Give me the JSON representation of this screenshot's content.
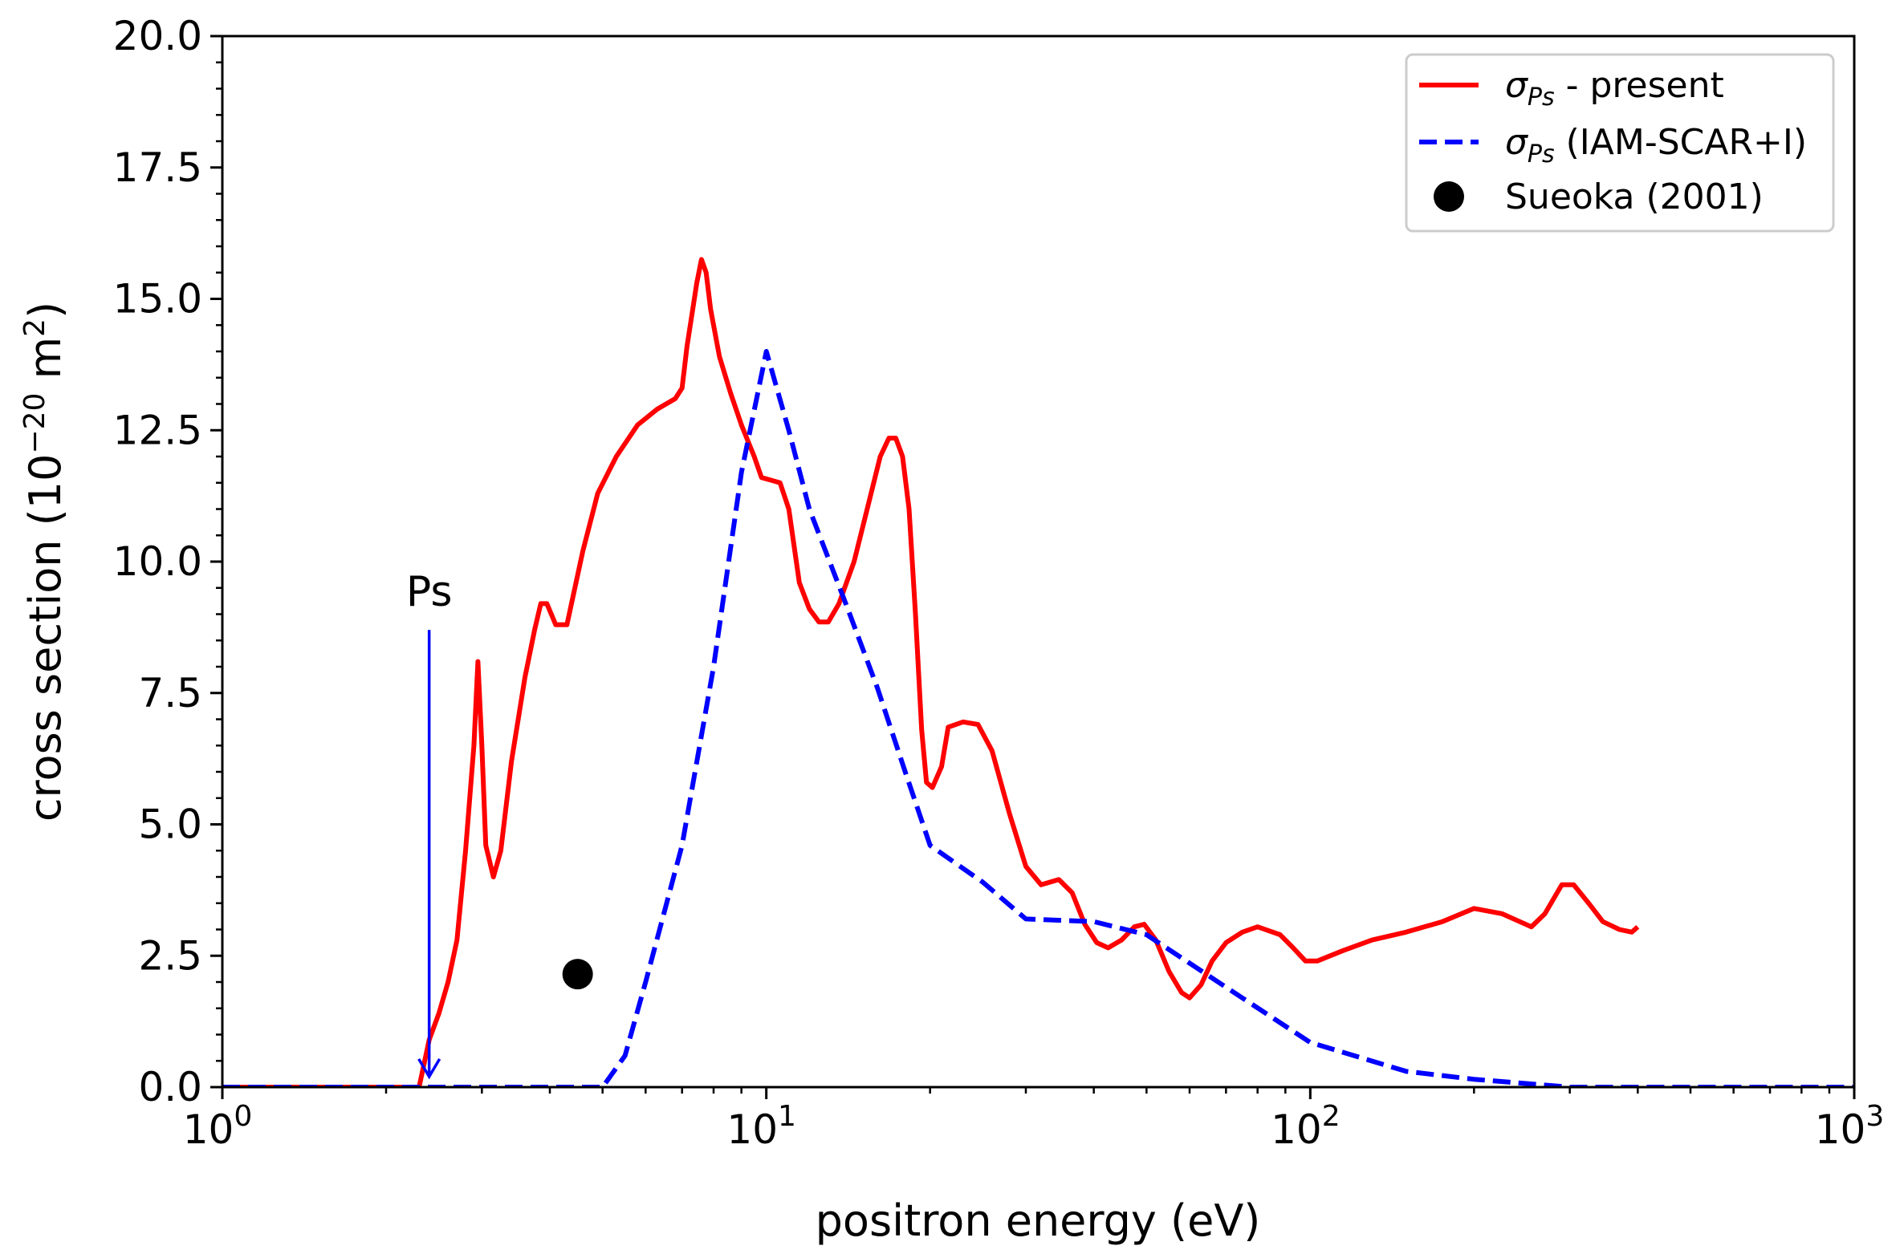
{
  "chart_data": {
    "type": "line",
    "xscale": "log",
    "xlim": [
      1,
      1000
    ],
    "ylim": [
      0,
      20
    ],
    "xlabel": "positron energy (eV)",
    "ylabel_prefix": "cross section (10",
    "ylabel_exp": "−20",
    "ylabel_mid": " m",
    "ylabel_sq": "2",
    "ylabel_suffix": ")",
    "x_ticks": [
      {
        "value": 1,
        "base": "10",
        "exp": "0"
      },
      {
        "value": 10,
        "base": "10",
        "exp": "1"
      },
      {
        "value": 100,
        "base": "10",
        "exp": "2"
      },
      {
        "value": 1000,
        "base": "10",
        "exp": "3"
      }
    ],
    "y_ticks": [
      "0.0",
      "2.5",
      "5.0",
      "7.5",
      "10.0",
      "12.5",
      "15.0",
      "17.5",
      "20.0"
    ],
    "legend_position": "top-right",
    "series": [
      {
        "name_symbol": "σ",
        "name_sub": "Ps",
        "name_rest": " - present",
        "style": "solid",
        "color": "#ff0000",
        "points": [
          [
            1.0,
            0
          ],
          [
            2.3,
            0
          ],
          [
            2.4,
            0.9
          ],
          [
            2.5,
            1.4
          ],
          [
            2.6,
            2.0
          ],
          [
            2.7,
            2.8
          ],
          [
            2.8,
            4.5
          ],
          [
            2.9,
            6.5
          ],
          [
            2.95,
            8.1
          ],
          [
            3.0,
            6.5
          ],
          [
            3.05,
            4.6
          ],
          [
            3.15,
            4.0
          ],
          [
            3.25,
            4.5
          ],
          [
            3.4,
            6.2
          ],
          [
            3.6,
            7.8
          ],
          [
            3.75,
            8.7
          ],
          [
            3.85,
            9.2
          ],
          [
            3.95,
            9.2
          ],
          [
            4.1,
            8.8
          ],
          [
            4.3,
            8.8
          ],
          [
            4.6,
            10.2
          ],
          [
            4.9,
            11.3
          ],
          [
            5.3,
            12.0
          ],
          [
            5.8,
            12.6
          ],
          [
            6.3,
            12.9
          ],
          [
            6.8,
            13.1
          ],
          [
            7.0,
            13.3
          ],
          [
            7.15,
            14.1
          ],
          [
            7.3,
            14.7
          ],
          [
            7.45,
            15.3
          ],
          [
            7.6,
            15.75
          ],
          [
            7.75,
            15.5
          ],
          [
            7.9,
            14.8
          ],
          [
            8.2,
            13.9
          ],
          [
            8.6,
            13.2
          ],
          [
            9.0,
            12.6
          ],
          [
            9.5,
            12.0
          ],
          [
            9.8,
            11.6
          ],
          [
            10.2,
            11.55
          ],
          [
            10.6,
            11.5
          ],
          [
            11.0,
            11.0
          ],
          [
            11.5,
            9.6
          ],
          [
            12.0,
            9.1
          ],
          [
            12.5,
            8.85
          ],
          [
            13.0,
            8.85
          ],
          [
            13.6,
            9.2
          ],
          [
            14.5,
            10.0
          ],
          [
            15.5,
            11.2
          ],
          [
            16.2,
            12.0
          ],
          [
            16.8,
            12.35
          ],
          [
            17.3,
            12.35
          ],
          [
            17.8,
            12.0
          ],
          [
            18.3,
            11.0
          ],
          [
            18.8,
            9.0
          ],
          [
            19.3,
            6.8
          ],
          [
            19.7,
            5.8
          ],
          [
            20.2,
            5.7
          ],
          [
            21.0,
            6.1
          ],
          [
            21.6,
            6.85
          ],
          [
            23.0,
            6.95
          ],
          [
            24.5,
            6.9
          ],
          [
            26.0,
            6.4
          ],
          [
            28.0,
            5.2
          ],
          [
            30.0,
            4.2
          ],
          [
            32.0,
            3.85
          ],
          [
            34.5,
            3.95
          ],
          [
            36.5,
            3.7
          ],
          [
            38.5,
            3.1
          ],
          [
            40.5,
            2.75
          ],
          [
            42.5,
            2.65
          ],
          [
            45.0,
            2.8
          ],
          [
            47.5,
            3.05
          ],
          [
            49.5,
            3.1
          ],
          [
            52.0,
            2.8
          ],
          [
            55.0,
            2.2
          ],
          [
            58.0,
            1.8
          ],
          [
            60.0,
            1.7
          ],
          [
            63.0,
            1.95
          ],
          [
            66.0,
            2.4
          ],
          [
            70.0,
            2.75
          ],
          [
            75.0,
            2.95
          ],
          [
            80.0,
            3.05
          ],
          [
            88.0,
            2.9
          ],
          [
            93.0,
            2.65
          ],
          [
            98.0,
            2.4
          ],
          [
            103.0,
            2.4
          ],
          [
            115.0,
            2.6
          ],
          [
            130.0,
            2.8
          ],
          [
            150.0,
            2.95
          ],
          [
            175.0,
            3.15
          ],
          [
            200.0,
            3.4
          ],
          [
            225.0,
            3.3
          ],
          [
            255.0,
            3.05
          ],
          [
            270.0,
            3.3
          ],
          [
            290.0,
            3.85
          ],
          [
            305.0,
            3.85
          ],
          [
            325.0,
            3.5
          ],
          [
            345.0,
            3.15
          ],
          [
            370.0,
            3.0
          ],
          [
            390.0,
            2.95
          ],
          [
            400.0,
            3.05
          ]
        ]
      },
      {
        "name_symbol": "σ",
        "name_sub": "Ps",
        "name_rest": " (IAM-SCAR+I)",
        "style": "dashed",
        "color": "#0000ff",
        "points": [
          [
            1.0,
            0
          ],
          [
            4.5,
            0
          ],
          [
            5.0,
            0
          ],
          [
            5.5,
            0.6
          ],
          [
            6.0,
            2.0
          ],
          [
            7.0,
            4.6
          ],
          [
            8.0,
            8.0
          ],
          [
            9.0,
            11.7
          ],
          [
            10.0,
            14.0
          ],
          [
            11.0,
            12.5
          ],
          [
            12.0,
            11.0
          ],
          [
            14.0,
            9.2
          ],
          [
            16.0,
            7.6
          ],
          [
            18.0,
            6.0
          ],
          [
            20.0,
            4.6
          ],
          [
            25.0,
            3.9
          ],
          [
            30.0,
            3.2
          ],
          [
            40.0,
            3.15
          ],
          [
            50.0,
            2.9
          ],
          [
            70.0,
            1.9
          ],
          [
            100.0,
            0.85
          ],
          [
            150.0,
            0.3
          ],
          [
            200.0,
            0.15
          ],
          [
            300.0,
            0.0
          ],
          [
            1000.0,
            0.0
          ]
        ]
      }
    ],
    "points": [
      {
        "name": "Sueoka (2001)",
        "x": 4.5,
        "y": 2.15,
        "color": "#000000"
      }
    ],
    "annotations": [
      {
        "text": "Ps",
        "x": 2.4,
        "y_start": 8.7,
        "y_end": 0.2,
        "color": "#0000ff"
      }
    ]
  }
}
